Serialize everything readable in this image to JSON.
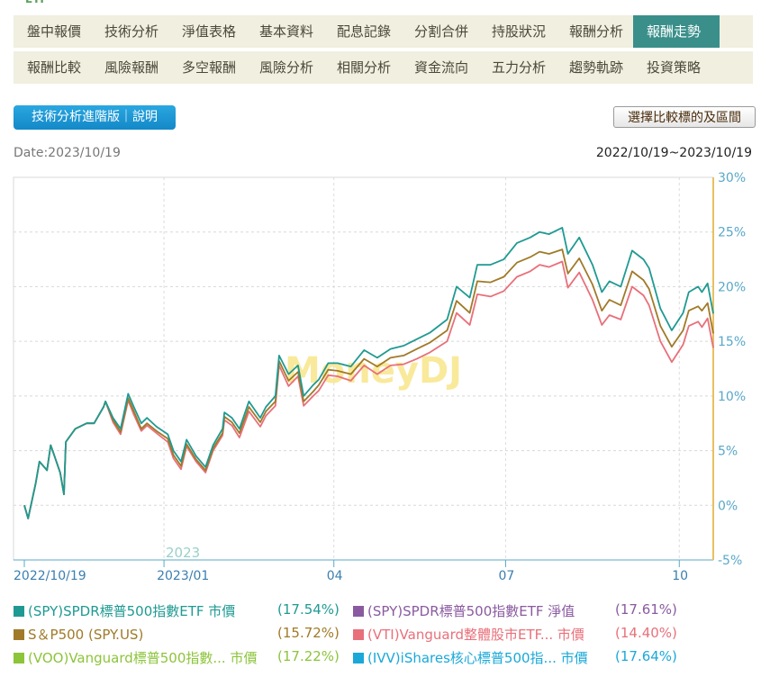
{
  "nav": {
    "row1": [
      "盤中報價",
      "技術分析",
      "淨值表格",
      "基本資料",
      "配息記錄",
      "分割合併",
      "持股狀況",
      "報酬分析",
      "報酬走勢"
    ],
    "row2": [
      "報酬比較",
      "風險報酬",
      "多空報酬",
      "風險分析",
      "相關分析",
      "資金流向",
      "五力分析",
      "趨勢軌跡",
      "投資策略"
    ],
    "active": "報酬走勢"
  },
  "buttons": {
    "advanced": "技術分析進階版｜說明",
    "compare": "選擇比較標的及區間"
  },
  "date_label": "Date:2023/10/19",
  "range_label": "2022/10/19~2023/10/19",
  "watermark": "MoneyDJ",
  "colors": {
    "spy": "#1f9a92",
    "spx": "#a07a28",
    "vti": "#e8707a",
    "voo": "#8cc43a",
    "spy_nav": "#8a5aa0",
    "ivv": "#1aa8d8"
  },
  "chart_data": {
    "type": "line",
    "x": [
      "2022-10-19",
      "2022-10-21",
      "2022-10-25",
      "2022-10-27",
      "2022-10-31",
      "2022-11-02",
      "2022-11-04",
      "2022-11-07",
      "2022-11-09",
      "2022-11-10",
      "2022-11-15",
      "2022-11-21",
      "2022-11-25",
      "2022-11-30",
      "2022-12-01",
      "2022-12-05",
      "2022-12-09",
      "2022-12-13",
      "2022-12-16",
      "2022-12-20",
      "2022-12-23",
      "2022-12-28",
      "2023-01-03",
      "2023-01-06",
      "2023-01-10",
      "2023-01-13",
      "2023-01-18",
      "2023-01-23",
      "2023-01-27",
      "2023-02-01",
      "2023-02-02",
      "2023-02-06",
      "2023-02-10",
      "2023-02-15",
      "2023-02-21",
      "2023-02-24",
      "2023-03-01",
      "2023-03-03",
      "2023-03-08",
      "2023-03-13",
      "2023-03-16",
      "2023-03-21",
      "2023-03-24",
      "2023-03-29",
      "2023-04-03",
      "2023-04-10",
      "2023-04-17",
      "2023-04-24",
      "2023-05-01",
      "2023-05-08",
      "2023-05-15",
      "2023-05-22",
      "2023-05-31",
      "2023-06-05",
      "2023-06-12",
      "2023-06-16",
      "2023-06-23",
      "2023-06-30",
      "2023-07-07",
      "2023-07-14",
      "2023-07-19",
      "2023-07-24",
      "2023-07-31",
      "2023-08-03",
      "2023-08-09",
      "2023-08-16",
      "2023-08-21",
      "2023-08-25",
      "2023-08-31",
      "2023-09-06",
      "2023-09-12",
      "2023-09-15",
      "2023-09-21",
      "2023-09-27",
      "2023-10-03",
      "2023-10-06",
      "2023-10-11",
      "2023-10-13",
      "2023-10-16",
      "2023-10-19"
    ],
    "series": [
      {
        "name": "(SPY)SPDR標普500指數ETF 市價",
        "final": "(17.54%)",
        "color_key": "spy",
        "values": [
          0,
          -1.2,
          2,
          4,
          3.2,
          5.5,
          4.5,
          3,
          1,
          5.8,
          7,
          7.5,
          7.5,
          9,
          9.5,
          8,
          7,
          10.2,
          9,
          7.5,
          8,
          7.2,
          6.5,
          5,
          4,
          6,
          4.5,
          3.5,
          5.5,
          7,
          8.5,
          8,
          7,
          9.5,
          8,
          9,
          10,
          13.7,
          12,
          12.8,
          10,
          11,
          11.5,
          13,
          13,
          12.7,
          14.2,
          13.5,
          14.3,
          14.6,
          15.2,
          15.8,
          17,
          20,
          19,
          22,
          22,
          22.5,
          24,
          24.5,
          25,
          24.8,
          25.4,
          23,
          24.5,
          22,
          19.5,
          20.5,
          20,
          23.3,
          22.5,
          21.7,
          18,
          16,
          17.6,
          19.5,
          20,
          19.5,
          20.3,
          17.54
        ]
      },
      {
        "name": "S＆P500 (SPY.US)",
        "final": "(15.72%)",
        "color_key": "spx",
        "values": [
          0,
          -1.2,
          2,
          4,
          3.2,
          5.5,
          4.5,
          3,
          1,
          5.8,
          7,
          7.5,
          7.5,
          9,
          9.5,
          7.8,
          6.7,
          9.8,
          8.6,
          7,
          7.5,
          6.8,
          6.1,
          4.6,
          3.6,
          5.6,
          4.2,
          3.2,
          5.2,
          6.6,
          8.1,
          7.6,
          6.6,
          9,
          7.6,
          8.6,
          9.5,
          13.2,
          11.4,
          12.2,
          9.5,
          10.4,
          11,
          12.4,
          12.3,
          12,
          13.4,
          12.7,
          13.5,
          13.7,
          14.3,
          14.9,
          16,
          18.7,
          17.6,
          20.5,
          20.4,
          20.9,
          22.2,
          22.7,
          23.2,
          23,
          23.4,
          21.2,
          22.6,
          20.2,
          17.8,
          18.8,
          18.3,
          21.4,
          20.6,
          19.8,
          16.4,
          14.5,
          16,
          17.8,
          18.2,
          17.8,
          18.5,
          15.72
        ]
      },
      {
        "name": "(VTI)Vanguard整體股市ETF... 市價",
        "final": "(14.40%)",
        "color_key": "vti",
        "values": [
          0,
          -1.2,
          2,
          4,
          3.2,
          5.5,
          4.5,
          3,
          1,
          5.8,
          7,
          7.5,
          7.5,
          9,
          9.5,
          7.6,
          6.5,
          9.6,
          8.3,
          6.8,
          7.3,
          6.6,
          5.8,
          4.3,
          3.3,
          5.4,
          4,
          3,
          5,
          6.4,
          7.8,
          7.3,
          6.2,
          8.6,
          7.2,
          8.2,
          9.1,
          12.8,
          10.9,
          11.8,
          9.1,
          10,
          10.5,
          11.9,
          11.8,
          11.4,
          12.8,
          12,
          12.8,
          12.9,
          13.4,
          14,
          15,
          17.6,
          16.5,
          19.3,
          19.1,
          19.6,
          20.9,
          21.4,
          22,
          21.8,
          22.3,
          19.9,
          21.3,
          18.8,
          16.5,
          17.4,
          17,
          20,
          19.2,
          18.3,
          15,
          13.1,
          14.7,
          16.4,
          16.8,
          16.3,
          17.1,
          14.4
        ]
      }
    ],
    "hidden_series": [
      {
        "name": "(SPY)SPDR標普500指數ETF 淨值",
        "final": "(17.61%)",
        "color_key": "spy_nav"
      },
      {
        "name": "(VOO)Vanguard標普500指數... 市價",
        "final": "(17.22%)",
        "color_key": "voo"
      },
      {
        "name": "(IVV)iShares核心標普500指... 市價",
        "final": "(17.64%)",
        "color_key": "ivv"
      }
    ],
    "ylim": [
      -5,
      30
    ],
    "yticks": [
      "30%",
      "25%",
      "20%",
      "15%",
      "10%",
      "5%",
      "0%",
      "-5%"
    ],
    "xtick_labels": [
      {
        "date": "2022-10-19",
        "label": "2022/10/19"
      },
      {
        "date": "2023-01-01",
        "label": "2023/01"
      },
      {
        "date": "2023-04-01",
        "label": "04"
      },
      {
        "date": "2023-07-01",
        "label": "07"
      },
      {
        "date": "2023-10-01",
        "label": "10"
      }
    ],
    "year_label": "2023"
  }
}
